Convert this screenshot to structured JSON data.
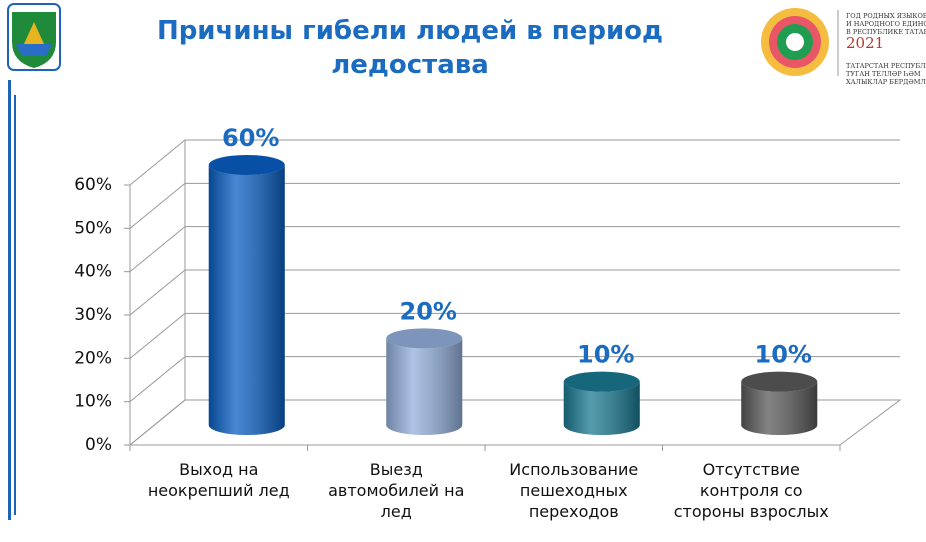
{
  "chart_data": {
    "type": "bar3d",
    "title": "Причины гибели людей в период ледостава",
    "categories": [
      "Выход на неокрепший лед",
      "Выезд автомобилей на лед",
      "Использование пешеходных переходов",
      "Отсутствие контроля со стороны взрослых"
    ],
    "values": [
      60,
      20,
      10,
      10
    ],
    "value_labels": [
      "60%",
      "20%",
      "10%",
      "10%"
    ],
    "colors": [
      "#0a5fc2",
      "#93afdc",
      "#1a7a92",
      "#5a5a5a"
    ],
    "ylim": [
      0,
      60
    ],
    "yticks": [
      {
        "value": 0,
        "label": "0%"
      },
      {
        "value": 10,
        "label": "10%"
      },
      {
        "value": 20,
        "label": "20%"
      },
      {
        "value": 30,
        "label": "30%"
      },
      {
        "value": 40,
        "label": "40%"
      },
      {
        "value": 50,
        "label": "50%"
      },
      {
        "value": 60,
        "label": "60%"
      }
    ],
    "grid": true
  },
  "logo": {
    "lines": [
      "ГОД РОДНЫХ ЯЗЫКОВ",
      "И НАРОДНОГО ЕДИНСТВА",
      "В РЕСПУБЛИКЕ ТАТАРСТАН",
      "2021",
      "ТАТАРСТАН РЕСПУБЛИКАСЫ",
      "ТУГАН ТЕЛЛӘР ҺӘМ",
      "ХАЛЫКЛАР БЕРДӘМЛЕГЕ"
    ]
  }
}
